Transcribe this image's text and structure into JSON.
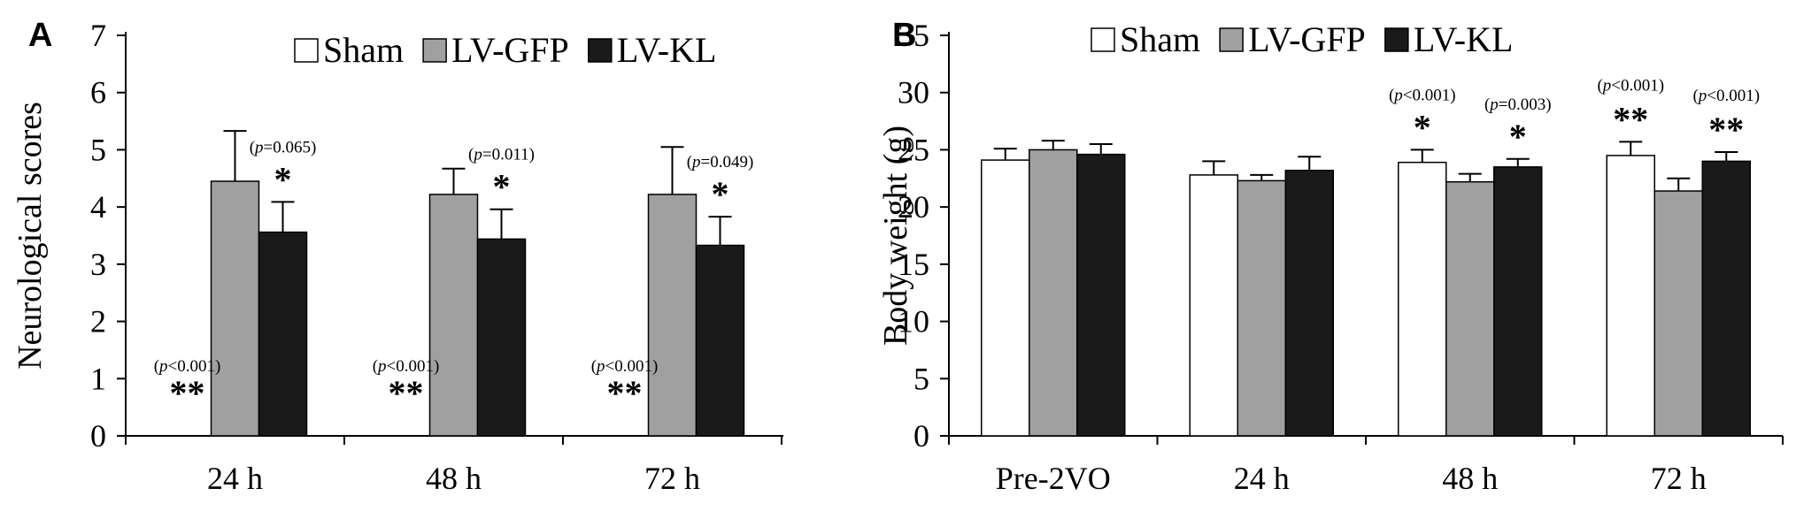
{
  "chart_data": [
    {
      "panel": "A",
      "type": "bar",
      "ylabel": "Neurological scores",
      "xlabel": "",
      "ylim": [
        0,
        7
      ],
      "yticks": [
        0,
        1,
        2,
        3,
        4,
        5,
        6,
        7
      ],
      "categories": [
        "24 h",
        "48 h",
        "72 h"
      ],
      "legend": {
        "placement": "top-right"
      },
      "series": [
        {
          "name": "Sham",
          "color": "#ffffff",
          "values": [
            0,
            0,
            0
          ],
          "errors": [
            0,
            0,
            0
          ]
        },
        {
          "name": "LV-GFP",
          "color": "#a0a0a0",
          "values": [
            4.45,
            4.22,
            4.22
          ],
          "errors": [
            0.88,
            0.45,
            0.83
          ]
        },
        {
          "name": "LV-KL",
          "color": "#1a1a1a",
          "values": [
            3.56,
            3.44,
            3.33
          ],
          "errors": [
            0.53,
            0.52,
            0.5
          ]
        }
      ],
      "annotations": [
        {
          "category": 0,
          "series": "Sham",
          "mark": "**",
          "p_label": "p",
          "p_text": "<0.001"
        },
        {
          "category": 0,
          "series": "LV-KL",
          "mark": "*",
          "p_label": "p",
          "p_text": "=0.065"
        },
        {
          "category": 1,
          "series": "Sham",
          "mark": "**",
          "p_label": "p",
          "p_text": "<0.001"
        },
        {
          "category": 1,
          "series": "LV-KL",
          "mark": "*",
          "p_label": "p",
          "p_text": "=0.011"
        },
        {
          "category": 2,
          "series": "Sham",
          "mark": "**",
          "p_label": "p",
          "p_text": "<0.001"
        },
        {
          "category": 2,
          "series": "LV-KL",
          "mark": "*",
          "p_label": "p",
          "p_text": "=0.049"
        }
      ]
    },
    {
      "panel": "B",
      "type": "bar",
      "ylabel": "Body weight (g)",
      "xlabel": "",
      "ylim": [
        0,
        35
      ],
      "yticks": [
        0,
        5,
        10,
        15,
        20,
        25,
        30,
        35
      ],
      "categories": [
        "Pre-2VO",
        "24 h",
        "48 h",
        "72 h"
      ],
      "legend": {
        "placement": "top"
      },
      "series": [
        {
          "name": "Sham",
          "color": "#ffffff",
          "values": [
            24.1,
            22.8,
            23.9,
            24.5
          ],
          "errors": [
            1.0,
            1.2,
            1.1,
            1.2
          ]
        },
        {
          "name": "LV-GFP",
          "color": "#a0a0a0",
          "values": [
            25.0,
            22.3,
            22.2,
            21.4
          ],
          "errors": [
            0.8,
            0.5,
            0.7,
            1.1
          ]
        },
        {
          "name": "LV-KL",
          "color": "#1a1a1a",
          "values": [
            24.6,
            23.2,
            23.5,
            24.0
          ],
          "errors": [
            0.9,
            1.2,
            0.7,
            0.8
          ]
        }
      ],
      "annotations": [
        {
          "category": 2,
          "series": "Sham",
          "mark": "*",
          "p_label": "p",
          "p_text": "<0.001"
        },
        {
          "category": 2,
          "series": "LV-KL",
          "mark": "*",
          "p_label": "p",
          "p_text": "=0.003"
        },
        {
          "category": 3,
          "series": "Sham",
          "mark": "**",
          "p_label": "p",
          "p_text": "<0.001"
        },
        {
          "category": 3,
          "series": "LV-KL",
          "mark": "**",
          "p_label": "p",
          "p_text": "<0.001"
        }
      ]
    }
  ]
}
